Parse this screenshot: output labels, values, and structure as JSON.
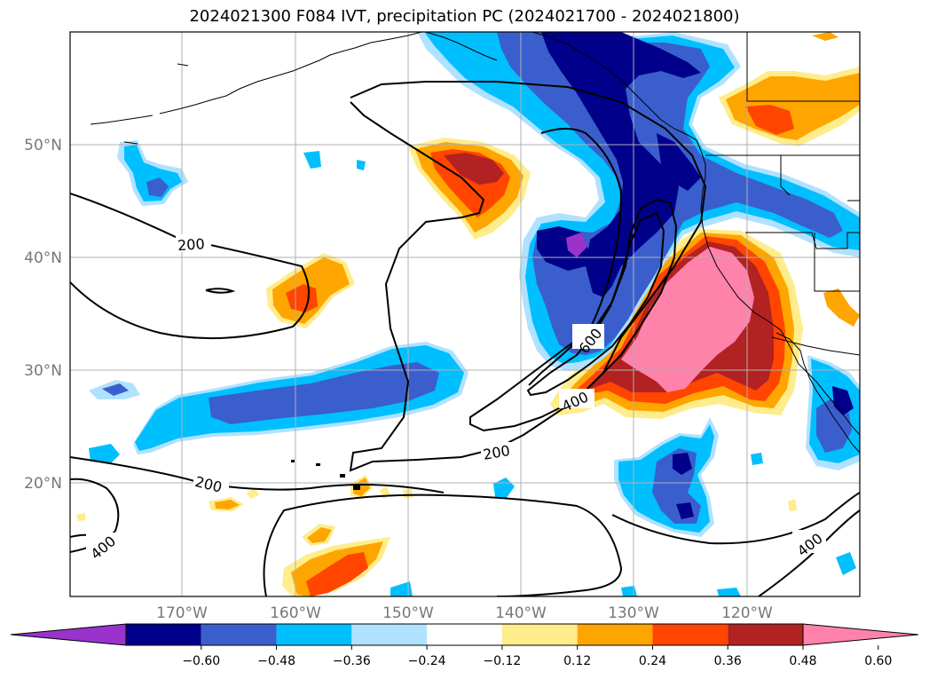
{
  "title": "2024021300 F084 IVT, precipitation PC (2024021700 - 2024021800)",
  "lat_labels": [
    "50°N",
    "40°N",
    "30°N",
    "20°N"
  ],
  "lon_labels": [
    "170°W",
    "160°W",
    "150°W",
    "140°W",
    "130°W",
    "120°W"
  ],
  "contour_labels": [
    "200",
    "200",
    "200",
    "400",
    "400",
    "400",
    "600"
  ],
  "colorbar": {
    "extend": "both",
    "colors": [
      "#9933cc",
      "#00008b",
      "#3a5fcd",
      "#00bfff",
      "#b0e2ff",
      "#ffffff",
      "#ffec8b",
      "#ffa500",
      "#ff4500",
      "#b22222",
      "#ff82ab"
    ],
    "tick_labels": [
      "−0.60",
      "−0.48",
      "−0.36",
      "−0.24",
      "−0.12",
      "0.12",
      "0.24",
      "0.36",
      "0.48",
      "0.60"
    ]
  },
  "colors": {
    "purple": "#9933cc",
    "navy": "#00008b",
    "royal": "#3a5fcd",
    "cyan": "#00bfff",
    "light_blue": "#b0e2ff",
    "yellow": "#ffec8b",
    "orange": "#ffa500",
    "red_orange": "#ff4500",
    "firebrick": "#b22222",
    "pink": "#ff82ab"
  }
}
